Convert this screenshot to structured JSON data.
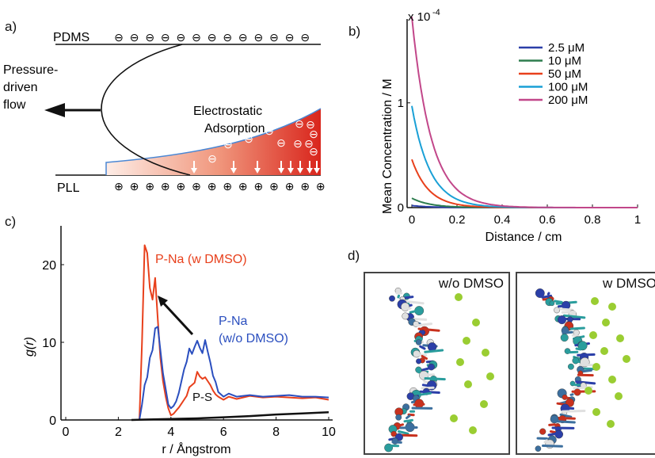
{
  "labels": {
    "a": "a)",
    "b": "b)",
    "c": "c)",
    "d": "d)"
  },
  "panel_a": {
    "top_wall": "PDMS",
    "bottom_wall": "PLL",
    "flow_lines": [
      "Pressure-",
      "driven",
      "flow"
    ],
    "adsorption_lines": [
      "Electrostatic",
      "Adsorption"
    ],
    "neg_symbol": "⊖",
    "pos_symbol": "⊕",
    "gradient_color": "#d9251c"
  },
  "chart_data": [
    {
      "panel": "b",
      "type": "line",
      "xlabel": "Distance / cm",
      "ylabel": "Mean Concentration / M",
      "scale_label": "x 10",
      "scale_exp": "-4",
      "xlim": [
        0,
        1
      ],
      "ylim": [
        0,
        1.8
      ],
      "xticks": [
        0,
        0.2,
        0.4,
        0.6,
        0.8,
        1
      ],
      "xtick_labels": [
        "0",
        "0.2",
        "0.4",
        "0.6",
        "0.8",
        "1"
      ],
      "yticks": [
        0,
        1
      ],
      "ytick_labels": [
        "0",
        "1"
      ],
      "legend_position": "top-right",
      "series": [
        {
          "name": "2.5 μM",
          "color": "#2b3fa8",
          "y0": 0.02,
          "decay": 0.08
        },
        {
          "name": "10 μM",
          "color": "#2e7d4f",
          "y0": 0.09,
          "decay": 0.08
        },
        {
          "name": "50 μM",
          "color": "#e8401c",
          "y0": 0.46,
          "decay": 0.075
        },
        {
          "name": "100 μM",
          "color": "#1aa0d6",
          "y0": 0.97,
          "decay": 0.08
        },
        {
          "name": "200 μM",
          "color": "#c2478a",
          "y0": 1.82,
          "decay": 0.085
        }
      ]
    },
    {
      "panel": "c",
      "type": "line",
      "xlabel": "r / Ångstrom",
      "ylabel": "g(r)",
      "xlim": [
        0,
        10
      ],
      "ylim": [
        0,
        25
      ],
      "xticks": [
        0,
        2,
        4,
        6,
        8,
        10
      ],
      "xtick_labels": [
        "0",
        "2",
        "4",
        "6",
        "8",
        "10"
      ],
      "yticks": [
        0,
        10,
        20
      ],
      "ytick_labels": [
        "0",
        "10",
        "20"
      ],
      "series": [
        {
          "name": "P-Na (w DMSO)",
          "color": "#e8401c",
          "x": [
            2.8,
            2.9,
            3.0,
            3.1,
            3.2,
            3.3,
            3.4,
            3.5,
            3.6,
            3.7,
            3.8,
            3.9,
            4.0,
            4.1,
            4.2,
            4.3,
            4.4,
            4.5,
            4.6,
            4.7,
            4.8,
            4.9,
            5.0,
            5.1,
            5.2,
            5.3,
            5.4,
            5.5,
            5.6,
            5.7,
            5.8,
            6.0,
            6.2,
            6.5,
            7.0,
            7.5,
            8.0,
            8.5,
            9.0,
            9.5,
            10.0
          ],
          "y": [
            0,
            10,
            22.5,
            21.5,
            17,
            15.5,
            18.3,
            13,
            8,
            5,
            3,
            1.5,
            0.6,
            0.8,
            1.2,
            1.6,
            2.1,
            2.6,
            3.1,
            4.2,
            4.5,
            4.8,
            6.2,
            5.6,
            5.3,
            5.5,
            5.0,
            4.5,
            3.8,
            3.3,
            3.0,
            2.6,
            3.0,
            2.7,
            3.1,
            2.9,
            3.0,
            2.9,
            2.8,
            2.9,
            2.6
          ]
        },
        {
          "name": "P-Na (w/o DMSO)",
          "color": "#2b4fbf",
          "x": [
            2.8,
            2.9,
            3.0,
            3.1,
            3.2,
            3.3,
            3.4,
            3.5,
            3.6,
            3.7,
            3.8,
            3.9,
            4.0,
            4.1,
            4.2,
            4.3,
            4.4,
            4.5,
            4.6,
            4.7,
            4.8,
            4.9,
            5.0,
            5.1,
            5.2,
            5.3,
            5.4,
            5.5,
            5.6,
            5.7,
            5.8,
            6.0,
            6.2,
            6.5,
            7.0,
            7.5,
            8.0,
            8.5,
            9.0,
            9.5,
            10.0
          ],
          "y": [
            0,
            2,
            4.5,
            5.5,
            8,
            9,
            11.8,
            12,
            9,
            6,
            4,
            2,
            1.5,
            1.8,
            2.4,
            3.5,
            5,
            6.5,
            7.5,
            9.2,
            8.5,
            9.4,
            10.2,
            9.3,
            8.6,
            10.3,
            8.8,
            7.4,
            5.7,
            4.9,
            3.6,
            3.0,
            3.4,
            3.0,
            3.2,
            3.0,
            3.1,
            3.2,
            3.0,
            3.0,
            2.9
          ]
        },
        {
          "name": "P-S",
          "color": "#111111",
          "x": [
            2.5,
            3,
            4,
            5,
            6,
            7,
            8,
            9,
            10
          ],
          "y": [
            0,
            0.05,
            0.12,
            0.2,
            0.35,
            0.5,
            0.7,
            0.85,
            1.0
          ]
        }
      ],
      "annotations": [
        {
          "text": "P-Na (w DMSO)",
          "color": "#e8401c"
        },
        {
          "text": "P-Na",
          "color": "#2b4fbf"
        },
        {
          "text": "(w/o DMSO)",
          "color": "#2b4fbf"
        },
        {
          "text": "P-S",
          "color": "#111111"
        }
      ]
    }
  ],
  "panel_d": {
    "left_caption": "w/o DMSO",
    "right_caption": "w DMSO"
  }
}
